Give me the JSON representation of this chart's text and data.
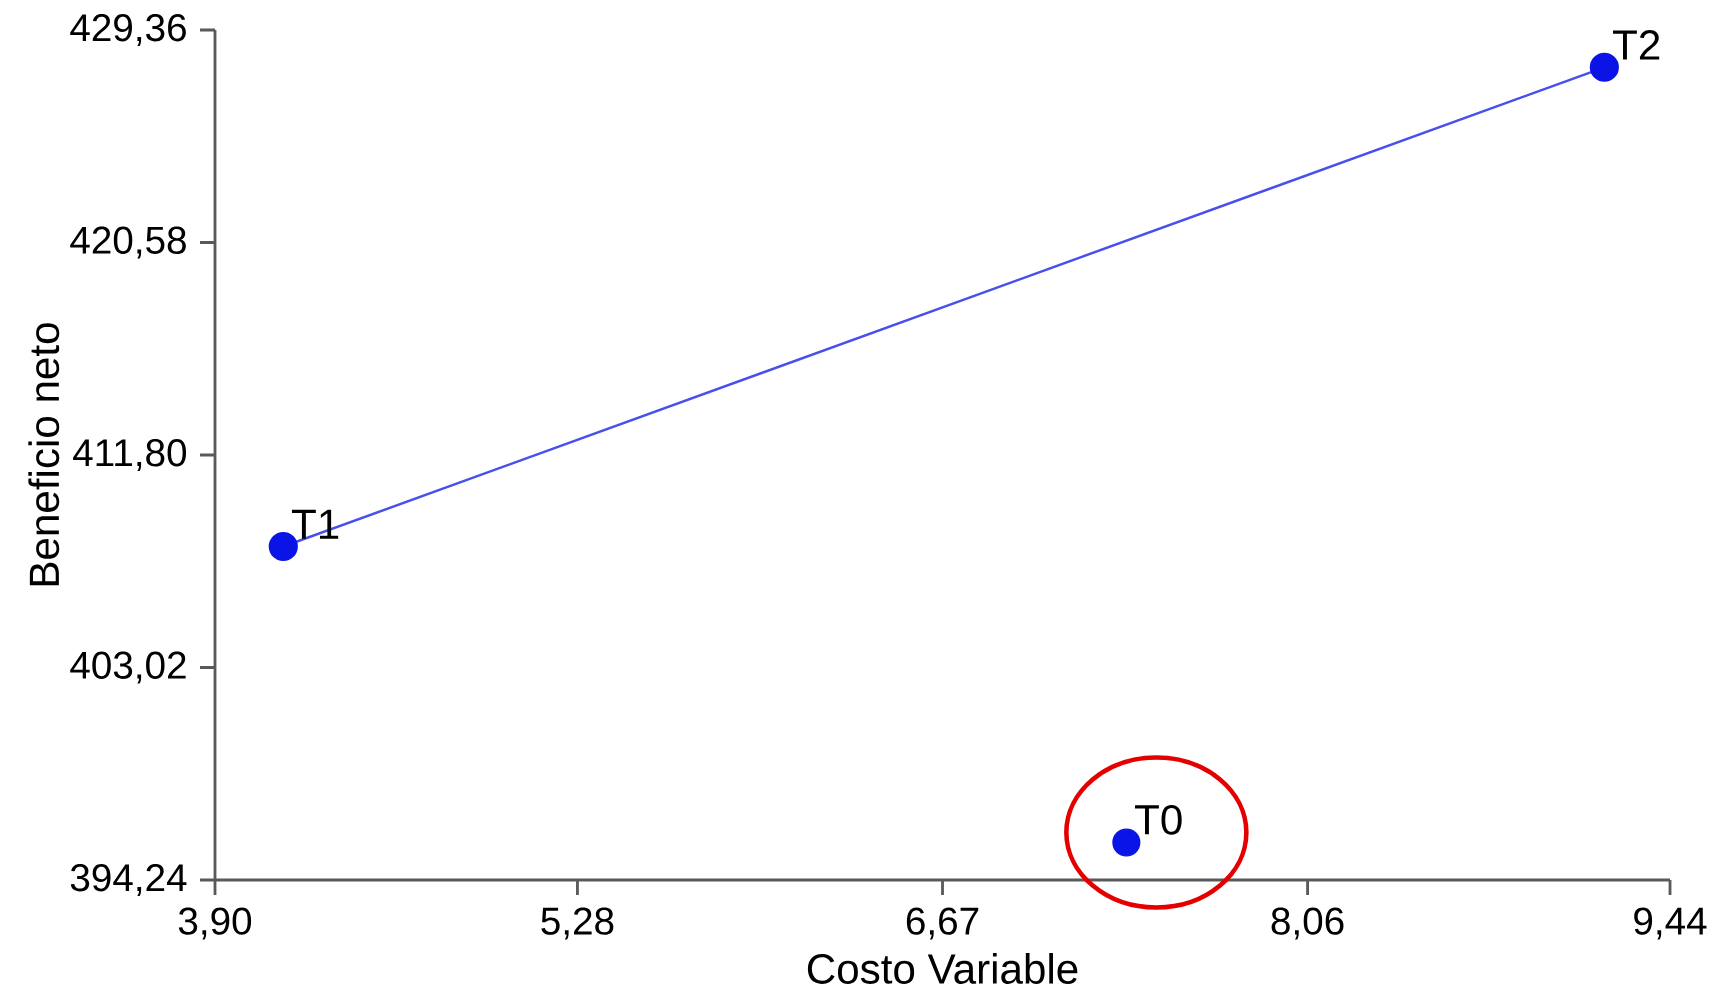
{
  "chart_data": {
    "type": "line",
    "xlabel": "Costo Variable",
    "ylabel": "Beneficio neto",
    "series": [
      {
        "color": "#0a14e6",
        "x": [
          4.16,
          9.19
        ],
        "values": [
          408.02,
          427.82
        ]
      },
      {
        "type": "scatter",
        "color": "#0a14e6",
        "x": [
          7.37
        ],
        "values": [
          395.79
        ]
      }
    ],
    "annotations": [
      {
        "text": "T1",
        "x": 4.16,
        "y": 408.02
      },
      {
        "text": "T2",
        "x": 9.19,
        "y": 427.82
      },
      {
        "text": "T0",
        "x": 7.37,
        "y": 395.79
      }
    ],
    "xlim": [
      3.9,
      9.44
    ],
    "ylim": [
      394.24,
      429.36
    ],
    "xticks": [
      {
        "value": 3.9,
        "label": "3,90"
      },
      {
        "value": 5.28,
        "label": "5,28"
      },
      {
        "value": 6.67,
        "label": "6,67"
      },
      {
        "value": 8.06,
        "label": "8,06"
      },
      {
        "value": 9.44,
        "label": "9,44"
      }
    ],
    "yticks": [
      {
        "value": 394.24,
        "label": "394,24"
      },
      {
        "value": 403.02,
        "label": "403,02"
      },
      {
        "value": 411.8,
        "label": "411,80"
      },
      {
        "value": 420.58,
        "label": "420,58"
      },
      {
        "value": 429.36,
        "label": "429,36"
      }
    ],
    "marker": "circle",
    "grid": false
  }
}
